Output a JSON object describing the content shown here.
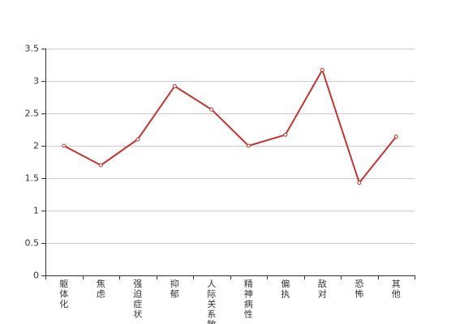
{
  "colors": {
    "line": "#c23531",
    "grid": "#cccccc",
    "axis": "#333333",
    "point_fill": "#ffffff",
    "text": "#333333"
  },
  "chart_data": {
    "type": "line",
    "title": "",
    "xlabel": "",
    "ylabel": "",
    "categories": [
      "躯体化",
      "焦虑",
      "强迫症状",
      "抑郁",
      "人际关系敏感",
      "精神病性",
      "偏执",
      "敌对",
      "恐怖",
      "其他"
    ],
    "series": [
      {
        "values": [
          2.0,
          1.7,
          2.1,
          2.92,
          2.56,
          2.0,
          2.17,
          3.17,
          1.43,
          2.14
        ]
      }
    ],
    "ylim": [
      0,
      3.5
    ],
    "yticks": [
      0,
      0.5,
      1,
      1.5,
      2,
      2.5,
      3,
      3.5
    ],
    "ytick_labels": [
      "0",
      "0.5",
      "1",
      "1.5",
      "2",
      "2.5",
      "3",
      "3.5"
    ],
    "grid": true,
    "legend": "none"
  }
}
